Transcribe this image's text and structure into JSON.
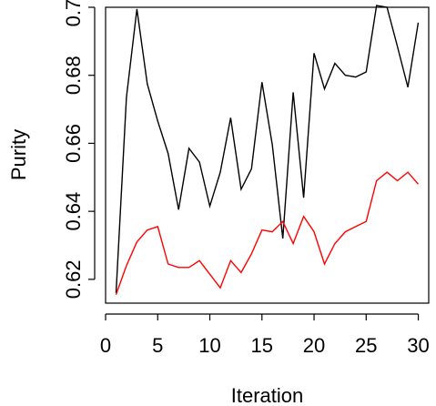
{
  "chart_data": {
    "type": "line",
    "title": "",
    "xlabel": "Iteration",
    "ylabel": "Purity",
    "xlim": [
      0,
      31
    ],
    "ylim": [
      0.613,
      0.7
    ],
    "grid": false,
    "legend": "none",
    "x": [
      1,
      2,
      3,
      4,
      5,
      6,
      7,
      8,
      9,
      10,
      11,
      12,
      13,
      14,
      15,
      16,
      17,
      18,
      19,
      20,
      21,
      22,
      23,
      24,
      25,
      26,
      27,
      28,
      29,
      30
    ],
    "x_ticks": [
      0,
      5,
      10,
      15,
      20,
      25,
      30
    ],
    "y_ticks": [
      0.62,
      0.64,
      0.66,
      0.68,
      0.7
    ],
    "y_tick_labels": [
      "0.62",
      "0.64",
      "0.66",
      "0.68",
      "0.70"
    ],
    "series": [
      {
        "color": "#000000",
        "values": [
          0.616,
          0.6735,
          0.6995,
          0.6775,
          0.6665,
          0.657,
          0.6405,
          0.6585,
          0.6545,
          0.6415,
          0.6515,
          0.6675,
          0.6465,
          0.6525,
          0.678,
          0.6595,
          0.632,
          0.675,
          0.644,
          0.6865,
          0.676,
          0.6835,
          0.68,
          0.6795,
          0.681,
          0.7005,
          0.7,
          0.6885,
          0.6765,
          0.6955
        ]
      },
      {
        "color": "#ff0000",
        "values": [
          0.6155,
          0.624,
          0.631,
          0.6345,
          0.6355,
          0.6245,
          0.6235,
          0.6235,
          0.6255,
          0.6215,
          0.6175,
          0.6255,
          0.622,
          0.6275,
          0.6345,
          0.634,
          0.637,
          0.6305,
          0.6385,
          0.634,
          0.6245,
          0.6305,
          0.634,
          0.6355,
          0.637,
          0.649,
          0.6515,
          0.649,
          0.6515,
          0.648
        ]
      }
    ]
  }
}
